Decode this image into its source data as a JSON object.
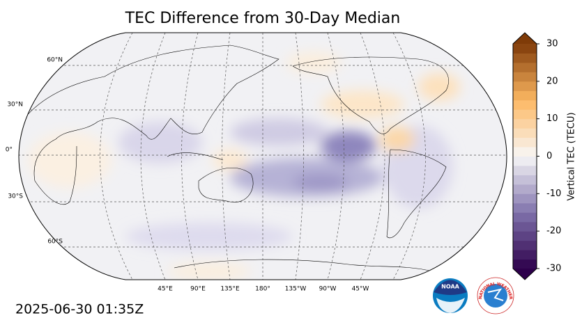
{
  "title": "TEC Difference from 30-Day Median",
  "map": {
    "lat_labels": [
      "60°N",
      "30°N",
      "0°",
      "30°S",
      "60°S"
    ],
    "lon_labels": [
      "45°E",
      "90°E",
      "135°E",
      "180°",
      "135°W",
      "90°W",
      "45°W"
    ]
  },
  "colorbar": {
    "label": "Vertical TEC (TECU)",
    "lim": [
      -30,
      30
    ],
    "ticks": [
      -30,
      -20,
      -10,
      0,
      10,
      20,
      30
    ]
  },
  "timestamp": "2025-06-30 01:35Z",
  "logos": {
    "noaa": "NOAA",
    "nws": "NATIONAL WEATHER SERVICE"
  }
}
